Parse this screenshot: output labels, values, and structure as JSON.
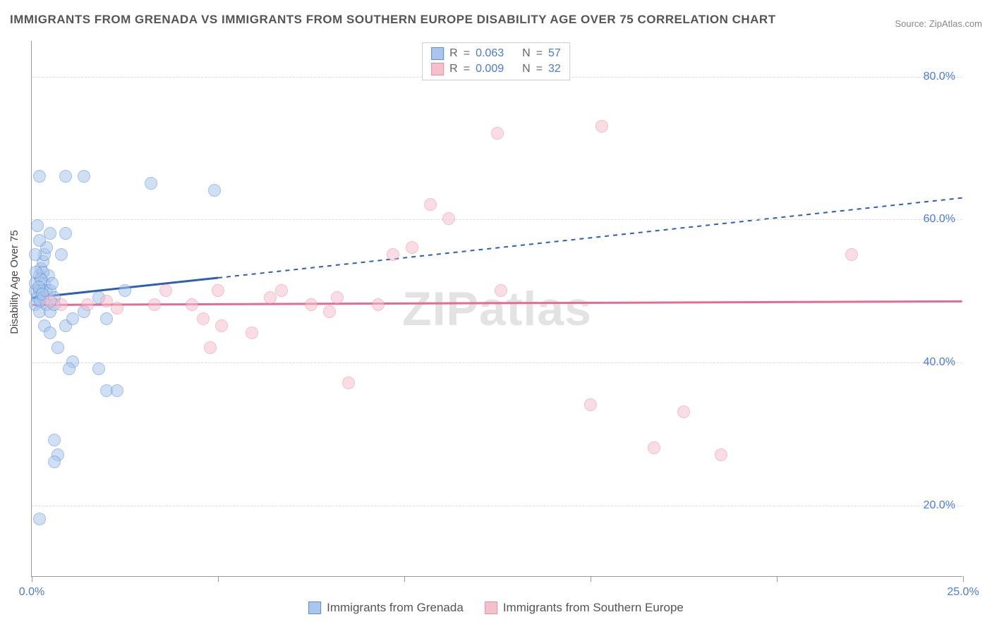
{
  "title": "IMMIGRANTS FROM GRENADA VS IMMIGRANTS FROM SOUTHERN EUROPE DISABILITY AGE OVER 75 CORRELATION CHART",
  "source_label": "Source: ZipAtlas.com",
  "watermark": "ZIPatlas",
  "y_axis_label": "Disability Age Over 75",
  "chart": {
    "type": "scatter",
    "xlim": [
      0,
      25
    ],
    "ylim": [
      10,
      85
    ],
    "x_ticks": [
      0,
      5,
      10,
      15,
      20,
      25
    ],
    "x_tick_labels": [
      "0.0%",
      "",
      "",
      "",
      "",
      "25.0%"
    ],
    "y_gridlines": [
      20,
      40,
      60,
      80
    ],
    "y_tick_labels": [
      "20.0%",
      "40.0%",
      "60.0%",
      "80.0%"
    ],
    "background_color": "#ffffff",
    "grid_color": "#dddddd",
    "axis_color": "#999999",
    "tick_label_color": "#4a7bd8",
    "marker_radius": 9,
    "marker_opacity": 0.55
  },
  "series": [
    {
      "key": "grenada",
      "label": "Immigrants from Grenada",
      "r": "0.063",
      "n": "57",
      "marker_fill": "#a9c6ec",
      "marker_stroke": "#5b8cd6",
      "trend_color": "#2f5faf",
      "trend_solid_extent_x": 5.0,
      "trend_start": [
        0,
        49
      ],
      "trend_end": [
        25,
        63
      ],
      "points": [
        [
          0.1,
          50
        ],
        [
          0.1,
          51
        ],
        [
          0.2,
          50
        ],
        [
          0.2,
          52
        ],
        [
          0.15,
          49
        ],
        [
          0.1,
          48
        ],
        [
          0.3,
          50
        ],
        [
          0.3,
          49
        ],
        [
          0.2,
          47
        ],
        [
          0.35,
          51
        ],
        [
          0.4,
          50
        ],
        [
          0.45,
          52
        ],
        [
          0.4,
          48
        ],
        [
          0.5,
          50
        ],
        [
          0.55,
          51
        ],
        [
          0.6,
          49
        ],
        [
          0.5,
          47
        ],
        [
          0.6,
          48
        ],
        [
          0.25,
          53
        ],
        [
          0.3,
          54
        ],
        [
          0.35,
          55
        ],
        [
          0.1,
          55
        ],
        [
          0.4,
          56
        ],
        [
          0.5,
          58
        ],
        [
          0.9,
          58
        ],
        [
          0.8,
          55
        ],
        [
          0.2,
          66
        ],
        [
          0.9,
          66
        ],
        [
          1.4,
          66
        ],
        [
          3.2,
          65
        ],
        [
          4.9,
          64
        ],
        [
          0.35,
          45
        ],
        [
          0.5,
          44
        ],
        [
          0.9,
          45
        ],
        [
          1.1,
          46
        ],
        [
          1.4,
          47
        ],
        [
          2.0,
          46
        ],
        [
          1.8,
          49
        ],
        [
          2.5,
          50
        ],
        [
          0.7,
          42
        ],
        [
          1.1,
          40
        ],
        [
          1.0,
          39
        ],
        [
          1.8,
          39
        ],
        [
          2.0,
          36
        ],
        [
          2.3,
          36
        ],
        [
          0.6,
          29
        ],
        [
          0.7,
          27
        ],
        [
          0.6,
          26
        ],
        [
          0.2,
          18
        ],
        [
          0.15,
          59
        ],
        [
          0.2,
          57
        ],
        [
          0.3,
          52.5
        ],
        [
          0.25,
          51.5
        ],
        [
          0.12,
          52.5
        ],
        [
          0.18,
          50.5
        ],
        [
          0.22,
          48.5
        ],
        [
          0.28,
          49.5
        ]
      ]
    },
    {
      "key": "southern_europe",
      "label": "Immigrants from Southern Europe",
      "r": "0.009",
      "n": "32",
      "marker_fill": "#f5c0ce",
      "marker_stroke": "#e48faa",
      "trend_color": "#e36b94",
      "trend_solid_extent_x": 25.0,
      "trend_start": [
        0,
        48
      ],
      "trend_end": [
        25,
        48.5
      ],
      "points": [
        [
          0.5,
          48.5
        ],
        [
          0.8,
          48
        ],
        [
          1.5,
          48
        ],
        [
          2.0,
          48.5
        ],
        [
          2.3,
          47.5
        ],
        [
          3.3,
          48
        ],
        [
          3.6,
          50
        ],
        [
          4.3,
          48
        ],
        [
          4.6,
          46
        ],
        [
          5.1,
          45
        ],
        [
          5.0,
          50
        ],
        [
          5.9,
          44
        ],
        [
          6.4,
          49
        ],
        [
          6.7,
          50
        ],
        [
          7.5,
          48
        ],
        [
          8.0,
          47
        ],
        [
          8.2,
          49
        ],
        [
          9.3,
          48
        ],
        [
          9.7,
          55
        ],
        [
          10.2,
          56
        ],
        [
          10.7,
          62
        ],
        [
          11.2,
          60
        ],
        [
          12.5,
          72
        ],
        [
          12.6,
          50
        ],
        [
          15.3,
          73
        ],
        [
          15.0,
          34
        ],
        [
          17.5,
          33
        ],
        [
          16.7,
          28
        ],
        [
          18.5,
          27
        ],
        [
          22.0,
          55
        ],
        [
          4.8,
          42
        ],
        [
          8.5,
          37
        ]
      ]
    }
  ],
  "legend_r_label": "R",
  "legend_n_label": "N",
  "legend_eq": "="
}
